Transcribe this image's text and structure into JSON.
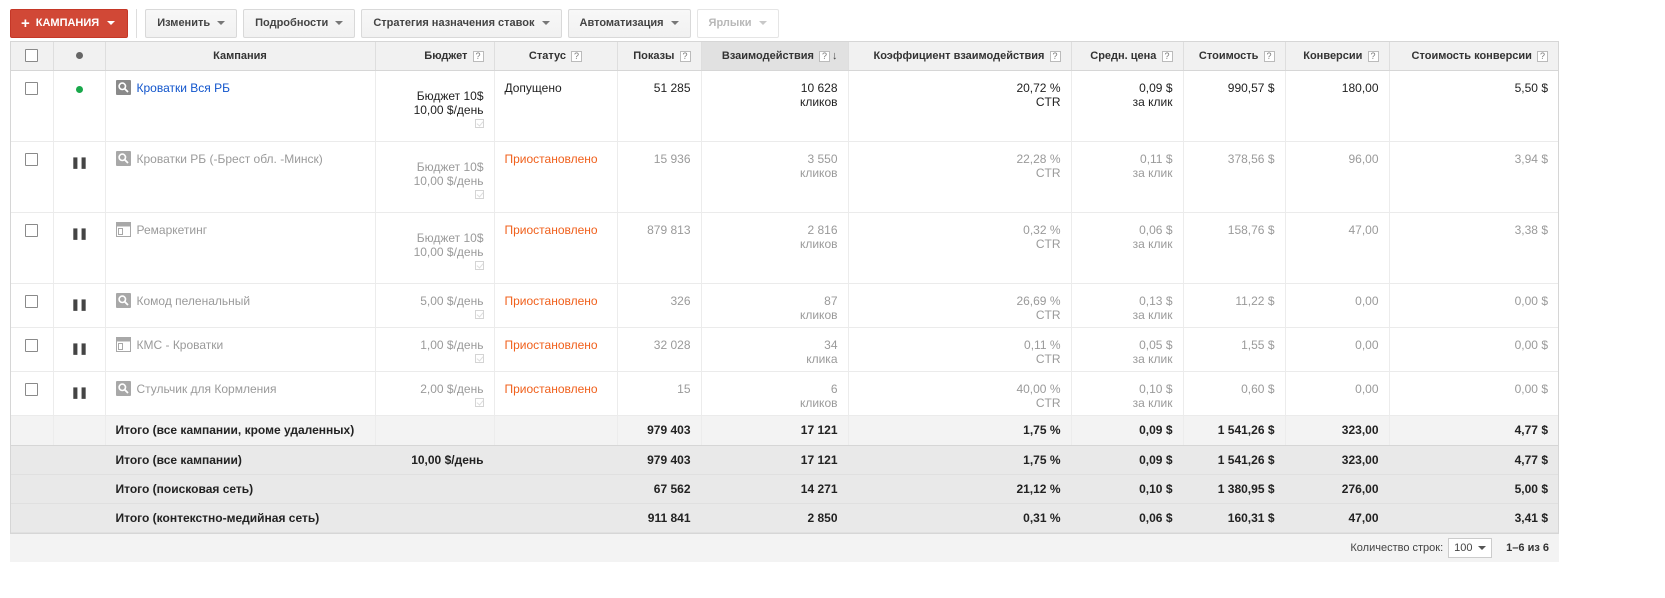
{
  "toolbar": {
    "campaign_button": "КАМПАНИЯ",
    "buttons": [
      "Изменить",
      "Подробности",
      "Стратегия назначения ставок",
      "Автоматизация",
      "Ярлыки"
    ]
  },
  "columns": {
    "campaign": "Кампания",
    "budget": "Бюджет",
    "status": "Статус",
    "impressions": "Показы",
    "interactions": "Взаимодействия",
    "interaction_rate": "Коэффициент взаимодействия",
    "avg_cost": "Средн. цена",
    "cost": "Стоимость",
    "conversions": "Конверсии",
    "cost_per_conv": "Стоимость конверсии",
    "help": "?"
  },
  "rows": [
    {
      "name": "Кроватки Вся РБ",
      "icon": "search-icon",
      "budget_line1": "Бюджет 10$",
      "budget_line2": "10,00 $/день",
      "status": "Допущено",
      "impressions": "51 285",
      "interactions": "10 628",
      "interactions_unit": "кликов",
      "rate": "20,72 %",
      "rate_unit": "CTR",
      "avg_cost": "0,09 $",
      "avg_cost_unit": "за клик",
      "cost": "990,57 $",
      "conversions": "180,00",
      "cost_per_conv": "5,50 $"
    },
    {
      "name": "Кроватки РБ (-Брест обл. -Минск)",
      "icon": "search-icon",
      "budget_line1": "Бюджет 10$",
      "budget_line2": "10,00 $/день",
      "status": "Приостановлено",
      "impressions": "15 936",
      "interactions": "3 550",
      "interactions_unit": "кликов",
      "rate": "22,28 %",
      "rate_unit": "CTR",
      "avg_cost": "0,11 $",
      "avg_cost_unit": "за клик",
      "cost": "378,56 $",
      "conversions": "96,00",
      "cost_per_conv": "3,94 $"
    },
    {
      "name": "Ремаркетинг",
      "icon": "display-icon",
      "budget_line1": "Бюджет 10$",
      "budget_line2": "10,00 $/день",
      "status": "Приостановлено",
      "impressions": "879 813",
      "interactions": "2 816",
      "interactions_unit": "кликов",
      "rate": "0,32 %",
      "rate_unit": "CTR",
      "avg_cost": "0,06 $",
      "avg_cost_unit": "за клик",
      "cost": "158,76 $",
      "conversions": "47,00",
      "cost_per_conv": "3,38 $"
    },
    {
      "name": "Комод пеленальный",
      "icon": "search-icon",
      "budget_line1": "5,00 $/день",
      "status": "Приостановлено",
      "impressions": "326",
      "interactions": "87",
      "interactions_unit": "кликов",
      "rate": "26,69 %",
      "rate_unit": "CTR",
      "avg_cost": "0,13 $",
      "avg_cost_unit": "за клик",
      "cost": "11,22 $",
      "conversions": "0,00",
      "cost_per_conv": "0,00 $"
    },
    {
      "name": "КМС - Кроватки",
      "icon": "display-icon",
      "budget_line1": "1,00 $/день",
      "status": "Приостановлено",
      "impressions": "32 028",
      "interactions": "34",
      "interactions_unit": "клика",
      "rate": "0,11 %",
      "rate_unit": "CTR",
      "avg_cost": "0,05 $",
      "avg_cost_unit": "за клик",
      "cost": "1,55 $",
      "conversions": "0,00",
      "cost_per_conv": "0,00 $"
    },
    {
      "name": "Стульчик для Кормления",
      "icon": "search-icon",
      "budget_line1": "2,00 $/день",
      "status": "Приостановлено",
      "impressions": "15",
      "interactions": "6",
      "interactions_unit": "кликов",
      "rate": "40,00 %",
      "rate_unit": "CTR",
      "avg_cost": "0,10 $",
      "avg_cost_unit": "за клик",
      "cost": "0,60 $",
      "conversions": "0,00",
      "cost_per_conv": "0,00 $"
    }
  ],
  "totals": [
    {
      "label": "Итого (все кампании, кроме удаленных)",
      "budget": "",
      "impressions": "979 403",
      "interactions": "17 121",
      "rate": "1,75 %",
      "avg_cost": "0,09 $",
      "cost": "1 541,26 $",
      "conversions": "323,00",
      "cost_per_conv": "4,77 $"
    },
    {
      "label": "Итого (все кампании)",
      "budget": "10,00 $/день",
      "impressions": "979 403",
      "interactions": "17 121",
      "rate": "1,75 %",
      "avg_cost": "0,09 $",
      "cost": "1 541,26 $",
      "conversions": "323,00",
      "cost_per_conv": "4,77 $"
    },
    {
      "label": "Итого (поисковая сеть)",
      "budget": "",
      "impressions": "67 562",
      "interactions": "14 271",
      "rate": "21,12 %",
      "avg_cost": "0,10 $",
      "cost": "1 380,95 $",
      "conversions": "276,00",
      "cost_per_conv": "5,00 $"
    },
    {
      "label": "Итого (контекстно-медийная сеть)",
      "budget": "",
      "impressions": "911 841",
      "interactions": "2 850",
      "rate": "0,31 %",
      "avg_cost": "0,06 $",
      "cost": "160,31 $",
      "conversions": "47,00",
      "cost_per_conv": "3,41 $"
    }
  ],
  "footer": {
    "rows_label": "Количество строк:",
    "rows_value": "100",
    "pager": "1–6 из 6"
  }
}
